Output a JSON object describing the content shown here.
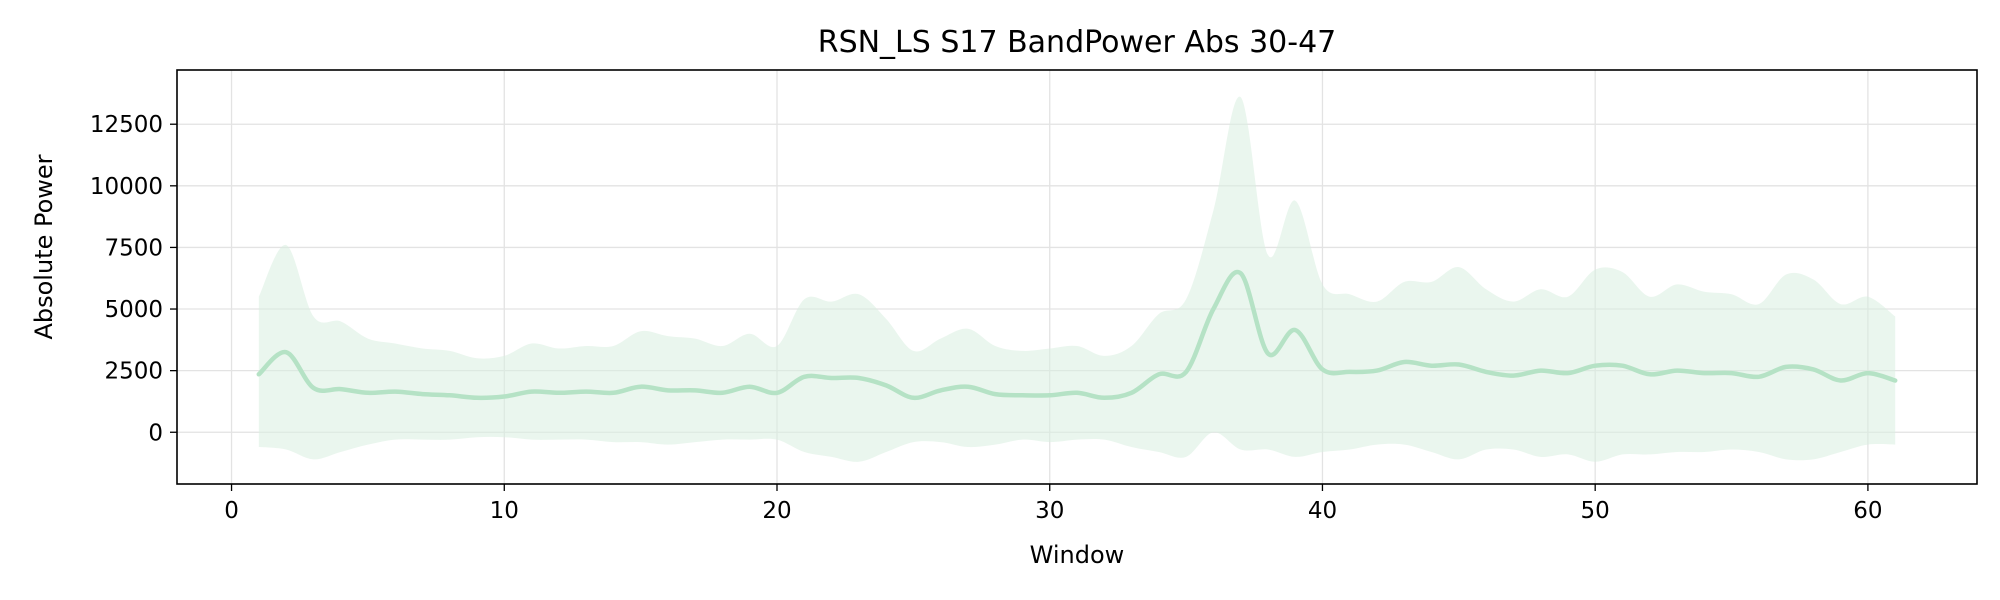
{
  "chart_data": {
    "type": "line",
    "title": "RSN_LS S17 BandPower Abs 30-47",
    "xlabel": "Window",
    "ylabel": "Absolute Power",
    "xlim": [
      -2,
      64
    ],
    "ylim": [
      -2100,
      14700
    ],
    "xticks": [
      0,
      10,
      20,
      30,
      40,
      50,
      60
    ],
    "yticks": [
      0,
      2500,
      5000,
      7500,
      10000,
      12500
    ],
    "grid": true,
    "legend": "none",
    "series": [
      {
        "color": "#b5e2c5",
        "band_color": "#d9efe0",
        "x": [
          1,
          2,
          3,
          4,
          5,
          6,
          7,
          8,
          9,
          10,
          11,
          12,
          13,
          14,
          15,
          16,
          17,
          18,
          19,
          20,
          21,
          22,
          23,
          24,
          25,
          26,
          27,
          28,
          29,
          30,
          31,
          32,
          33,
          34,
          35,
          36,
          37,
          38,
          39,
          40,
          41,
          42,
          43,
          44,
          45,
          46,
          47,
          48,
          49,
          50,
          51,
          52,
          53,
          54,
          55,
          56,
          57,
          58,
          59,
          60,
          61
        ],
        "mean": [
          2350,
          3250,
          1800,
          1750,
          1600,
          1650,
          1550,
          1500,
          1400,
          1450,
          1650,
          1600,
          1650,
          1600,
          1850,
          1700,
          1700,
          1600,
          1850,
          1600,
          2250,
          2200,
          2200,
          1900,
          1400,
          1700,
          1850,
          1550,
          1500,
          1500,
          1600,
          1400,
          1600,
          2350,
          2450,
          5000,
          6450,
          3200,
          4150,
          2550,
          2450,
          2500,
          2850,
          2700,
          2750,
          2450,
          2300,
          2500,
          2400,
          2700,
          2700,
          2350,
          2500,
          2400,
          2400,
          2250,
          2650,
          2550,
          2100,
          2400,
          2100
        ],
        "upper": [
          5500,
          7600,
          4700,
          4500,
          3800,
          3600,
          3400,
          3300,
          3000,
          3100,
          3600,
          3400,
          3500,
          3500,
          4100,
          3900,
          3800,
          3500,
          4000,
          3500,
          5400,
          5300,
          5600,
          4600,
          3300,
          3800,
          4200,
          3500,
          3300,
          3400,
          3500,
          3100,
          3500,
          4800,
          5400,
          9000,
          13600,
          7200,
          9400,
          6000,
          5600,
          5300,
          6100,
          6100,
          6700,
          5800,
          5300,
          5800,
          5500,
          6600,
          6500,
          5500,
          6000,
          5700,
          5600,
          5200,
          6400,
          6200,
          5200,
          5500,
          4700
        ],
        "lower": [
          -600,
          -700,
          -1100,
          -800,
          -500,
          -300,
          -300,
          -300,
          -200,
          -200,
          -300,
          -300,
          -300,
          -400,
          -400,
          -500,
          -400,
          -300,
          -300,
          -300,
          -800,
          -1000,
          -1200,
          -800,
          -400,
          -400,
          -600,
          -500,
          -300,
          -400,
          -300,
          -300,
          -600,
          -800,
          -1000,
          0,
          -700,
          -700,
          -1000,
          -800,
          -700,
          -500,
          -500,
          -800,
          -1100,
          -700,
          -700,
          -1000,
          -900,
          -1200,
          -900,
          -900,
          -800,
          -800,
          -700,
          -800,
          -1100,
          -1100,
          -800,
          -500,
          -500
        ]
      }
    ]
  }
}
